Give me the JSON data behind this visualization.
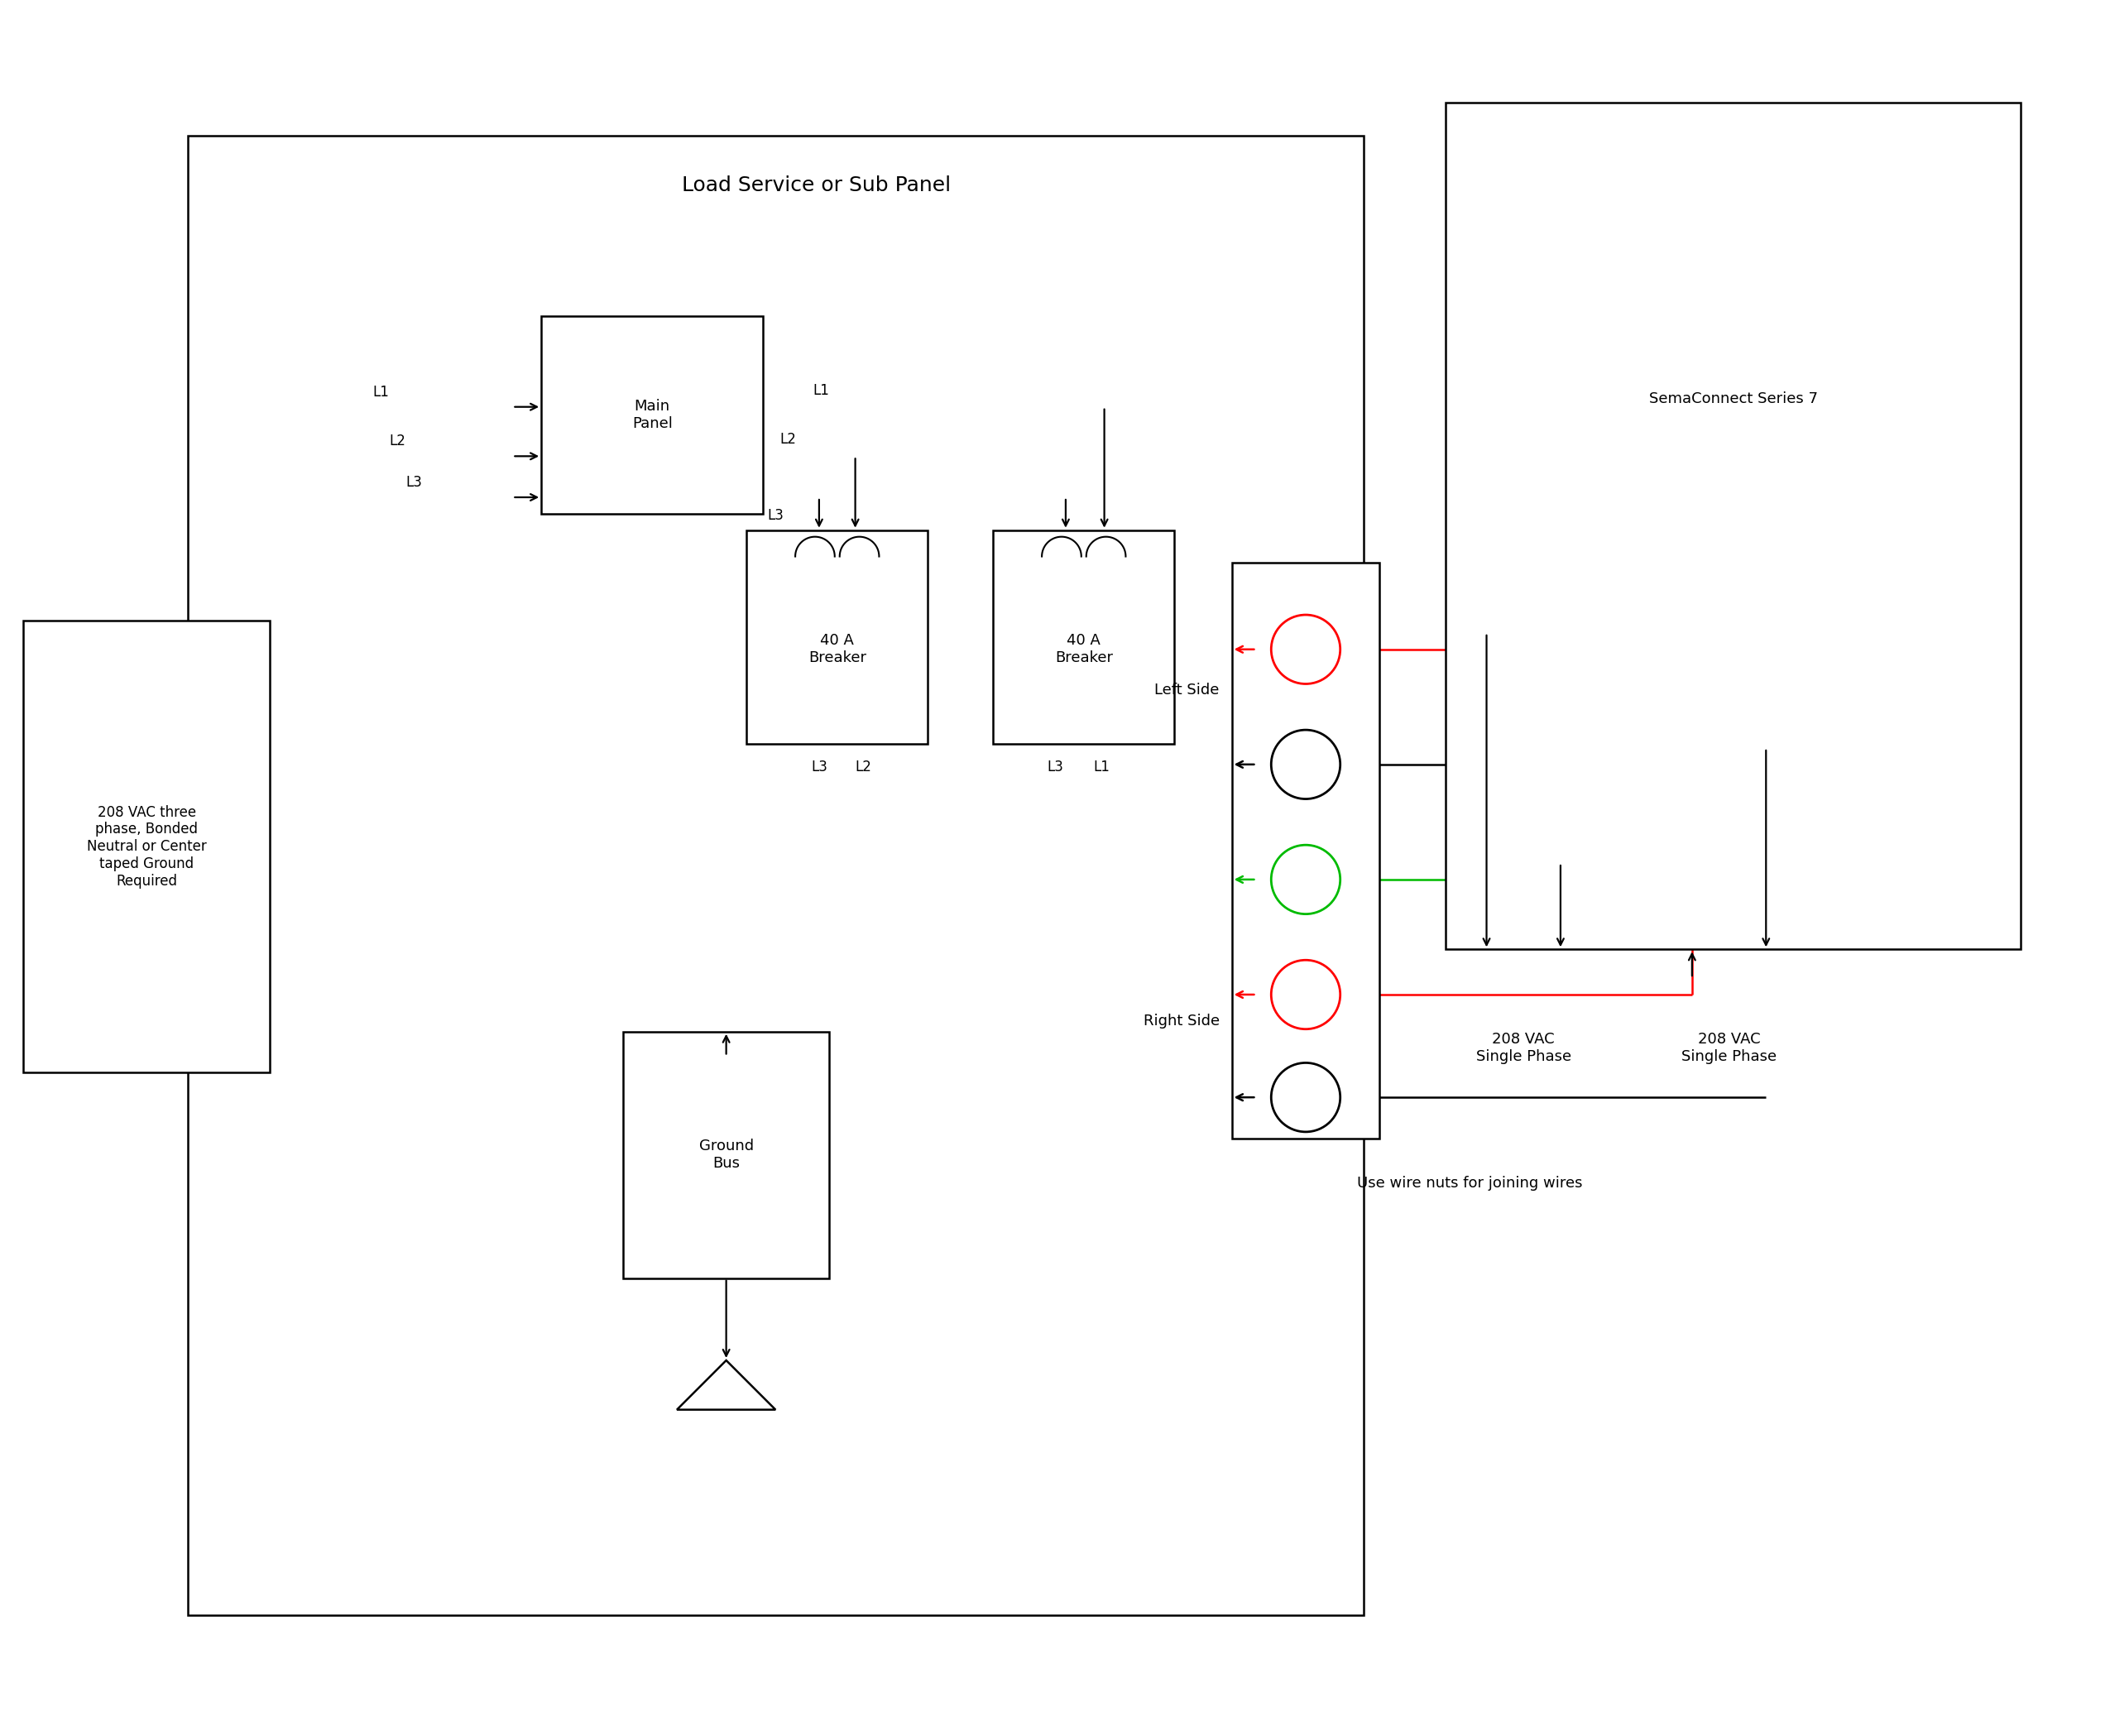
{
  "bg_color": "#ffffff",
  "black": "#000000",
  "red": "#ff0000",
  "green": "#00bb00",
  "title": "Load Service or Sub Panel",
  "sema_title": "SemaConnect Series 7",
  "source_label": "208 VAC three\nphase, Bonded\nNeutral or Center\ntaped Ground\nRequired",
  "ground_label": "Ground\nBus",
  "breaker_label": "40 A\nBreaker",
  "left_side_label": "Left Side",
  "right_side_label": "Right Side",
  "use_wire_label": "Use wire nuts for joining wires",
  "vac_left_label": "208 VAC\nSingle Phase",
  "vac_right_label": "208 VAC\nSingle Phase",
  "main_panel_label": "Main\nPanel",
  "lw": 1.8,
  "lw_wire": 1.6,
  "fs_title": 18,
  "fs_main": 14,
  "fs_label": 13,
  "fs_small": 12
}
